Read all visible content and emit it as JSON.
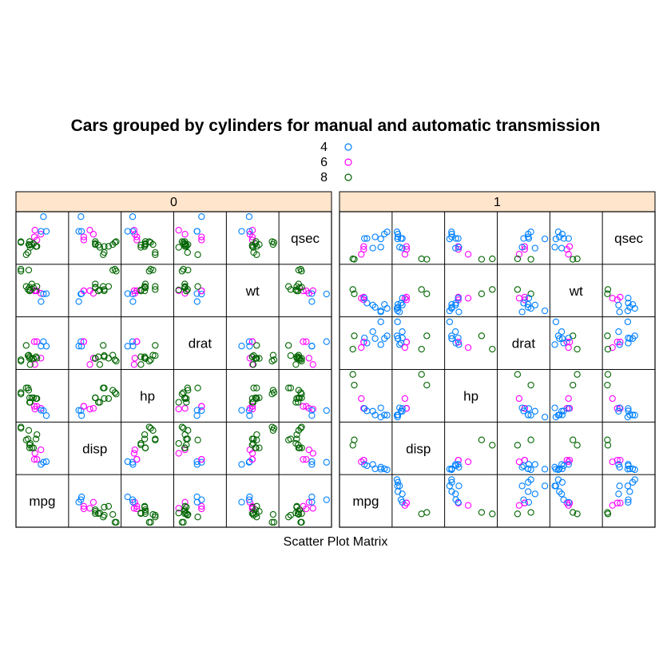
{
  "chart_data": {
    "type": "scatter",
    "title": "Cars grouped by cylinders for manual and automatic transmission",
    "xlabel": "Scatter Plot Matrix",
    "ylabel": "",
    "variables": [
      "mpg",
      "disp",
      "hp",
      "drat",
      "wt",
      "qsec"
    ],
    "legend": {
      "placement": "top",
      "entries": [
        {
          "label": "4",
          "color": "#0080ff"
        },
        {
          "label": "6",
          "color": "#ff00ff"
        },
        {
          "label": "8",
          "color": "#006400"
        }
      ]
    },
    "strip_color": "#ffe5cc",
    "panels": [
      {
        "label": "0",
        "points": [
          {
            "g": "6",
            "mpg": 21.4,
            "disp": 258,
            "hp": 110,
            "drat": 3.08,
            "wt": 3.215,
            "qsec": 19.44
          },
          {
            "g": "8",
            "mpg": 18.7,
            "disp": 360,
            "hp": 175,
            "drat": 3.15,
            "wt": 3.44,
            "qsec": 17.02
          },
          {
            "g": "6",
            "mpg": 18.1,
            "disp": 225,
            "hp": 105,
            "drat": 2.76,
            "wt": 3.46,
            "qsec": 20.22
          },
          {
            "g": "8",
            "mpg": 14.3,
            "disp": 360,
            "hp": 245,
            "drat": 3.21,
            "wt": 3.57,
            "qsec": 15.84
          },
          {
            "g": "4",
            "mpg": 24.4,
            "disp": 146.7,
            "hp": 62,
            "drat": 3.69,
            "wt": 3.19,
            "qsec": 20.0
          },
          {
            "g": "4",
            "mpg": 22.8,
            "disp": 140.8,
            "hp": 95,
            "drat": 3.92,
            "wt": 3.15,
            "qsec": 22.9
          },
          {
            "g": "6",
            "mpg": 19.2,
            "disp": 167.6,
            "hp": 123,
            "drat": 3.92,
            "wt": 3.44,
            "qsec": 18.3
          },
          {
            "g": "6",
            "mpg": 17.8,
            "disp": 167.6,
            "hp": 123,
            "drat": 3.92,
            "wt": 3.44,
            "qsec": 18.9
          },
          {
            "g": "8",
            "mpg": 16.4,
            "disp": 275.8,
            "hp": 180,
            "drat": 3.07,
            "wt": 4.07,
            "qsec": 17.4
          },
          {
            "g": "8",
            "mpg": 17.3,
            "disp": 275.8,
            "hp": 180,
            "drat": 3.07,
            "wt": 3.73,
            "qsec": 17.6
          },
          {
            "g": "8",
            "mpg": 15.2,
            "disp": 275.8,
            "hp": 180,
            "drat": 3.07,
            "wt": 3.78,
            "qsec": 18.0
          },
          {
            "g": "8",
            "mpg": 10.4,
            "disp": 472,
            "hp": 205,
            "drat": 2.93,
            "wt": 5.25,
            "qsec": 17.98
          },
          {
            "g": "8",
            "mpg": 10.4,
            "disp": 460,
            "hp": 215,
            "drat": 3.0,
            "wt": 5.424,
            "qsec": 17.82
          },
          {
            "g": "8",
            "mpg": 14.7,
            "disp": 440,
            "hp": 230,
            "drat": 3.23,
            "wt": 5.345,
            "qsec": 17.42
          },
          {
            "g": "4",
            "mpg": 21.5,
            "disp": 120.1,
            "hp": 97,
            "drat": 3.7,
            "wt": 2.465,
            "qsec": 20.01
          },
          {
            "g": "8",
            "mpg": 15.5,
            "disp": 318,
            "hp": 150,
            "drat": 2.76,
            "wt": 3.52,
            "qsec": 16.87
          },
          {
            "g": "8",
            "mpg": 15.2,
            "disp": 304,
            "hp": 150,
            "drat": 3.15,
            "wt": 3.435,
            "qsec": 17.3
          },
          {
            "g": "8",
            "mpg": 13.3,
            "disp": 350,
            "hp": 245,
            "drat": 3.73,
            "wt": 3.84,
            "qsec": 15.41
          },
          {
            "g": "8",
            "mpg": 19.2,
            "disp": 400,
            "hp": 175,
            "drat": 3.08,
            "wt": 3.845,
            "qsec": 17.05
          }
        ]
      },
      {
        "label": "1",
        "points": [
          {
            "g": "6",
            "mpg": 21.0,
            "disp": 160,
            "hp": 110,
            "drat": 3.9,
            "wt": 2.62,
            "qsec": 16.46
          },
          {
            "g": "6",
            "mpg": 21.0,
            "disp": 160,
            "hp": 110,
            "drat": 3.9,
            "wt": 2.875,
            "qsec": 17.02
          },
          {
            "g": "4",
            "mpg": 22.8,
            "disp": 108,
            "hp": 93,
            "drat": 3.85,
            "wt": 2.32,
            "qsec": 18.61
          },
          {
            "g": "4",
            "mpg": 32.4,
            "disp": 78.7,
            "hp": 66,
            "drat": 4.08,
            "wt": 2.2,
            "qsec": 19.47
          },
          {
            "g": "4",
            "mpg": 30.4,
            "disp": 75.7,
            "hp": 52,
            "drat": 4.93,
            "wt": 1.615,
            "qsec": 18.52
          },
          {
            "g": "4",
            "mpg": 33.9,
            "disp": 71.1,
            "hp": 65,
            "drat": 4.22,
            "wt": 1.835,
            "qsec": 19.9
          },
          {
            "g": "4",
            "mpg": 27.3,
            "disp": 79,
            "hp": 66,
            "drat": 4.08,
            "wt": 1.935,
            "qsec": 18.9
          },
          {
            "g": "4",
            "mpg": 26.0,
            "disp": 120.3,
            "hp": 91,
            "drat": 4.43,
            "wt": 2.14,
            "qsec": 16.7
          },
          {
            "g": "4",
            "mpg": 30.4,
            "disp": 95.1,
            "hp": 113,
            "drat": 3.77,
            "wt": 1.513,
            "qsec": 16.9
          },
          {
            "g": "8",
            "mpg": 15.8,
            "disp": 351,
            "hp": 264,
            "drat": 4.22,
            "wt": 3.17,
            "qsec": 14.5
          },
          {
            "g": "6",
            "mpg": 19.7,
            "disp": 145,
            "hp": 175,
            "drat": 3.62,
            "wt": 2.77,
            "qsec": 15.5
          },
          {
            "g": "8",
            "mpg": 15.0,
            "disp": 301,
            "hp": 335,
            "drat": 3.54,
            "wt": 3.57,
            "qsec": 14.6
          },
          {
            "g": "4",
            "mpg": 21.4,
            "disp": 121,
            "hp": 109,
            "drat": 4.11,
            "wt": 2.78,
            "qsec": 18.6
          }
        ]
      }
    ]
  }
}
